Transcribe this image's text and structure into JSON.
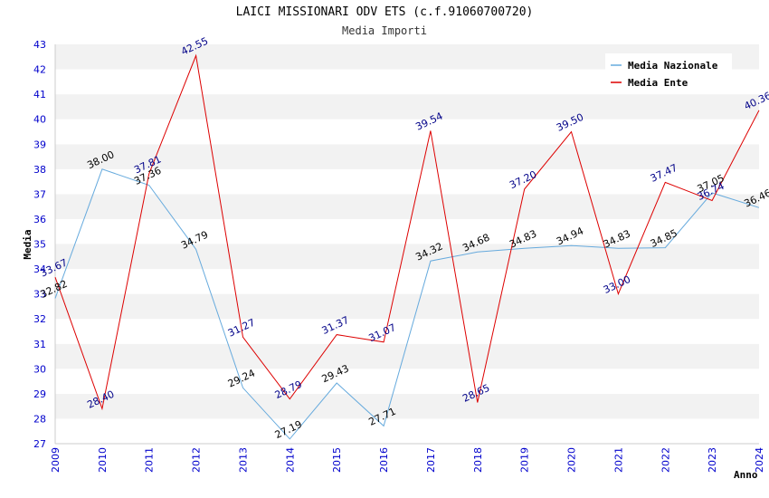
{
  "chart_data": {
    "type": "line",
    "title": "LAICI MISSIONARI ODV ETS (c.f.91060700720)",
    "subtitle": "Media Importi",
    "xlabel": "Anno",
    "ylabel": "Media",
    "x": [
      "2009",
      "2010",
      "2011",
      "2012",
      "2013",
      "2014",
      "2015",
      "2016",
      "2017",
      "2018",
      "2019",
      "2020",
      "2021",
      "2022",
      "2023",
      "2024"
    ],
    "ylim": [
      27,
      43
    ],
    "yticks": [
      27,
      28,
      29,
      30,
      31,
      32,
      33,
      34,
      35,
      36,
      37,
      38,
      39,
      40,
      41,
      42,
      43
    ],
    "grid": "horizontal-bands",
    "legend_position": "top-right",
    "series": [
      {
        "name": "Media Nazionale",
        "color": "#66aadd",
        "label_color": "#000000",
        "values": [
          32.82,
          38.0,
          37.36,
          34.79,
          29.24,
          27.19,
          29.43,
          27.71,
          34.32,
          34.68,
          34.83,
          34.94,
          34.83,
          34.85,
          37.05,
          36.46
        ],
        "labels": [
          "32.82",
          "38.00",
          "37.36",
          "34.79",
          "29.24",
          "27.19",
          "29.43",
          "27.71",
          "34.32",
          "34.68",
          "34.83",
          "34.94",
          "34.83",
          "34.85",
          "37.05",
          "36.46"
        ]
      },
      {
        "name": "Media Ente",
        "color": "#dd0000",
        "label_color": "#000088",
        "values": [
          33.67,
          28.4,
          37.81,
          42.55,
          31.27,
          28.79,
          31.37,
          31.07,
          39.54,
          28.65,
          37.2,
          39.5,
          33.0,
          37.47,
          36.74,
          40.36
        ],
        "labels": [
          "33.67",
          "28.40",
          "37.81",
          "42.55",
          "31.27",
          "28.79",
          "31.37",
          "31.07",
          "39.54",
          "28.65",
          "37.20",
          "39.50",
          "33.00",
          "37.47",
          "36.74",
          "40.36"
        ]
      }
    ]
  }
}
